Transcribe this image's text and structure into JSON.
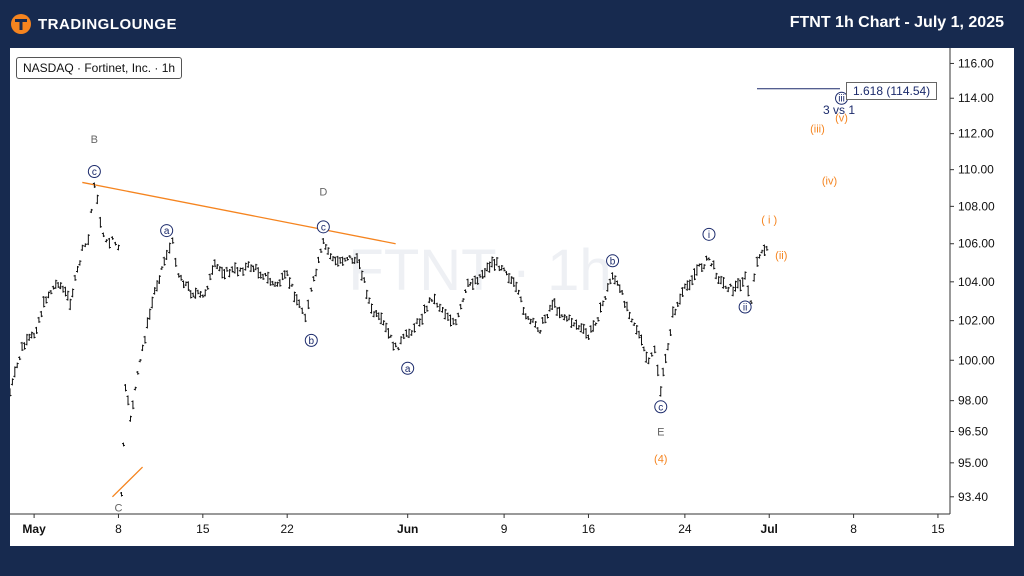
{
  "header": {
    "brand": "TradingLounge",
    "brand_display": "TRADINGLOUNGE",
    "title": "FTNT 1h Chart - July 1, 2025"
  },
  "colors": {
    "background": "#172A4F",
    "panel": "#ffffff",
    "price_bars": "#111111",
    "trendline": "#F5841F",
    "wave_navy": "#1B2A6B",
    "wave_orange": "#F5841F",
    "wave_gray": "#666666",
    "logo_orange": "#F5841F"
  },
  "symbol_label": "NASDAQ · Fortinet, Inc. · 1h",
  "watermark": "FTNT · 1h",
  "fib": {
    "label": "1.618 (114.54)",
    "price": 114.54,
    "note": "3 vs 1"
  },
  "chart_data": {
    "type": "ohlc",
    "interval": "1h",
    "x_axis": {
      "ticks": [
        {
          "label": "May",
          "date": "2025-05-01",
          "bold": true
        },
        {
          "label": "8",
          "date": "2025-05-08"
        },
        {
          "label": "15",
          "date": "2025-05-15"
        },
        {
          "label": "22",
          "date": "2025-05-22"
        },
        {
          "label": "Jun",
          "date": "2025-06-01",
          "bold": true
        },
        {
          "label": "9",
          "date": "2025-06-09"
        },
        {
          "label": "16",
          "date": "2025-06-16"
        },
        {
          "label": "24",
          "date": "2025-06-24"
        },
        {
          "label": "Jul",
          "date": "2025-07-01",
          "bold": true
        },
        {
          "label": "8",
          "date": "2025-07-08"
        },
        {
          "label": "15",
          "date": "2025-07-15"
        }
      ],
      "range": [
        "2025-04-29",
        "2025-07-16"
      ]
    },
    "y_axis": {
      "ticks": [
        "116.00",
        "114.00",
        "112.00",
        "110.00",
        "108.00",
        "106.00",
        "104.00",
        "102.00",
        "100.00",
        "98.00",
        "96.50",
        "95.00",
        "93.40"
      ],
      "range": [
        92.6,
        116.9
      ],
      "scale": "log"
    },
    "price_path": [
      {
        "date": "2025-04-29",
        "price": 98.4
      },
      {
        "date": "2025-04-30",
        "price": 100.6
      },
      {
        "date": "2025-05-01",
        "price": 101.3
      },
      {
        "date": "2025-05-02",
        "price": 103.2
      },
      {
        "date": "2025-05-03",
        "price": 104.0
      },
      {
        "date": "2025-05-04",
        "price": 103.0
      },
      {
        "date": "2025-05-05",
        "price": 105.6
      },
      {
        "date": "2025-05-05T12",
        "price": 106.2
      },
      {
        "date": "2025-05-06",
        "price": 109.3
      },
      {
        "date": "2025-05-06T12",
        "price": 107.2
      },
      {
        "date": "2025-05-07",
        "price": 106.0
      },
      {
        "date": "2025-05-07T12",
        "price": 106.3
      },
      {
        "date": "2025-05-08",
        "price": 105.7
      },
      {
        "date": "2025-05-08T06",
        "price": 93.4
      },
      {
        "date": "2025-05-08T14",
        "price": 98.5
      },
      {
        "date": "2025-05-09",
        "price": 97.2
      },
      {
        "date": "2025-05-10",
        "price": 100.6
      },
      {
        "date": "2025-05-11",
        "price": 103.5
      },
      {
        "date": "2025-05-12",
        "price": 105.5
      },
      {
        "date": "2025-05-12T12",
        "price": 106.0
      },
      {
        "date": "2025-05-13",
        "price": 104.4
      },
      {
        "date": "2025-05-14",
        "price": 103.5
      },
      {
        "date": "2025-05-15",
        "price": 103.2
      },
      {
        "date": "2025-05-16",
        "price": 104.8
      },
      {
        "date": "2025-05-17",
        "price": 104.5
      },
      {
        "date": "2025-05-19",
        "price": 104.8
      },
      {
        "date": "2025-05-20",
        "price": 104.4
      },
      {
        "date": "2025-05-21",
        "price": 103.8
      },
      {
        "date": "2025-05-22",
        "price": 104.3
      },
      {
        "date": "2025-05-23",
        "price": 102.8
      },
      {
        "date": "2025-05-23T12",
        "price": 102.3
      },
      {
        "date": "2025-05-24",
        "price": 103.5
      },
      {
        "date": "2025-05-25",
        "price": 106.0
      },
      {
        "date": "2025-05-26",
        "price": 105.0
      },
      {
        "date": "2025-05-27",
        "price": 105.3
      },
      {
        "date": "2025-05-28",
        "price": 105.0
      },
      {
        "date": "2025-05-29",
        "price": 102.5
      },
      {
        "date": "2025-05-30",
        "price": 101.8
      },
      {
        "date": "2025-05-31",
        "price": 100.6
      },
      {
        "date": "2025-06-02",
        "price": 102.0
      },
      {
        "date": "2025-06-03",
        "price": 103.2
      },
      {
        "date": "2025-06-05",
        "price": 101.8
      },
      {
        "date": "2025-06-06",
        "price": 103.8
      },
      {
        "date": "2025-06-07",
        "price": 104.3
      },
      {
        "date": "2025-06-08",
        "price": 105.0
      },
      {
        "date": "2025-06-09",
        "price": 104.8
      },
      {
        "date": "2025-06-10",
        "price": 103.6
      },
      {
        "date": "2025-06-11",
        "price": 102.0
      },
      {
        "date": "2025-06-12",
        "price": 101.6
      },
      {
        "date": "2025-06-13",
        "price": 102.9
      },
      {
        "date": "2025-06-14",
        "price": 102.2
      },
      {
        "date": "2025-06-15",
        "price": 101.8
      },
      {
        "date": "2025-06-16",
        "price": 101.2
      },
      {
        "date": "2025-06-17",
        "price": 102.5
      },
      {
        "date": "2025-06-18",
        "price": 104.4
      },
      {
        "date": "2025-06-19",
        "price": 103.0
      },
      {
        "date": "2025-06-20",
        "price": 101.6
      },
      {
        "date": "2025-06-21",
        "price": 99.8
      },
      {
        "date": "2025-06-21T12",
        "price": 100.6
      },
      {
        "date": "2025-06-22",
        "price": 98.5
      },
      {
        "date": "2025-06-23",
        "price": 102.3
      },
      {
        "date": "2025-06-24",
        "price": 103.6
      },
      {
        "date": "2025-06-25",
        "price": 104.6
      },
      {
        "date": "2025-06-26",
        "price": 105.2
      },
      {
        "date": "2025-06-27",
        "price": 104.0
      },
      {
        "date": "2025-06-28",
        "price": 103.6
      },
      {
        "date": "2025-06-29",
        "price": 104.2
      },
      {
        "date": "2025-06-29T12",
        "price": 102.9
      },
      {
        "date": "2025-06-30",
        "price": 105.2
      },
      {
        "date": "2025-07-01",
        "price": 105.8
      }
    ],
    "trendlines": [
      {
        "name": "B-D",
        "from": {
          "date": "2025-05-05",
          "price": 109.3
        },
        "to": {
          "date": "2025-05-31",
          "price": 106.0
        }
      },
      {
        "name": "C",
        "from": {
          "date": "2025-05-07T12",
          "price": 93.4
        },
        "to": {
          "date": "2025-05-10",
          "price": 94.8
        }
      }
    ],
    "annotations": [
      {
        "text": "B",
        "date": "2025-05-06",
        "price": 111.7,
        "color": "gray",
        "circled": false
      },
      {
        "text": "c",
        "date": "2025-05-06",
        "price": 109.9,
        "color": "navy",
        "circled": true
      },
      {
        "text": "C",
        "date": "2025-05-08",
        "price": 92.9,
        "color": "gray",
        "circled": false
      },
      {
        "text": "a",
        "date": "2025-05-12",
        "price": 106.7,
        "color": "navy",
        "circled": true
      },
      {
        "text": "b",
        "date": "2025-05-24",
        "price": 101.0,
        "color": "navy",
        "circled": true
      },
      {
        "text": "D",
        "date": "2025-05-25",
        "price": 108.8,
        "color": "gray",
        "circled": false
      },
      {
        "text": "c",
        "date": "2025-05-25",
        "price": 106.9,
        "color": "navy",
        "circled": true
      },
      {
        "text": "a",
        "date": "2025-06-01",
        "price": 99.6,
        "color": "navy",
        "circled": true
      },
      {
        "text": "b",
        "date": "2025-06-18",
        "price": 105.1,
        "color": "navy",
        "circled": true
      },
      {
        "text": "c",
        "date": "2025-06-22",
        "price": 97.7,
        "color": "navy",
        "circled": true
      },
      {
        "text": "E",
        "date": "2025-06-22",
        "price": 96.5,
        "color": "gray",
        "circled": false
      },
      {
        "text": "(4)",
        "date": "2025-06-22",
        "price": 95.2,
        "color": "orange",
        "circled": false
      },
      {
        "text": "i",
        "date": "2025-06-26",
        "price": 106.5,
        "color": "navy",
        "circled": true
      },
      {
        "text": "ii",
        "date": "2025-06-29",
        "price": 102.7,
        "color": "navy",
        "circled": true
      },
      {
        "text": "( i )",
        "date": "2025-07-01",
        "price": 107.3,
        "color": "orange",
        "circled": false
      },
      {
        "text": "(ii)",
        "date": "2025-07-02",
        "price": 105.4,
        "color": "orange",
        "circled": false
      },
      {
        "text": "(iii)",
        "date": "2025-07-05",
        "price": 112.3,
        "color": "orange",
        "circled": false
      },
      {
        "text": "(iv)",
        "date": "2025-07-06",
        "price": 109.4,
        "color": "orange",
        "circled": false
      },
      {
        "text": "(v)",
        "date": "2025-07-07",
        "price": 112.9,
        "color": "orange",
        "circled": false
      },
      {
        "text": "iii",
        "date": "2025-07-07",
        "price": 114.0,
        "color": "navy",
        "circled": true
      }
    ]
  }
}
